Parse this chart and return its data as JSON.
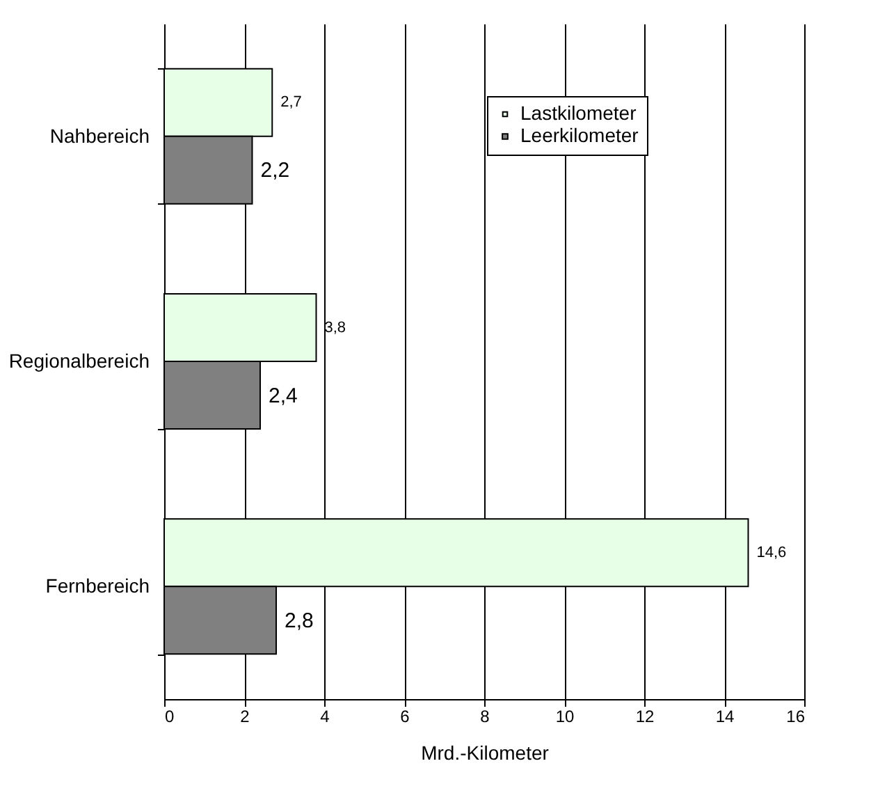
{
  "chart_data": {
    "type": "bar",
    "orientation": "horizontal",
    "xlabel": "Mrd.-Kilometer",
    "categories": [
      "Nahbereich",
      "Regionalbereich",
      "Fernbereich"
    ],
    "series": [
      {
        "name": "Lastkilometer",
        "color": "#e6ffe6",
        "values": [
          2.7,
          3.8,
          14.6
        ],
        "value_labels": [
          "2,7",
          "3,8",
          "14,6"
        ]
      },
      {
        "name": "Leerkilometer",
        "color": "#808080",
        "values": [
          2.2,
          2.4,
          2.8
        ],
        "value_labels": [
          "2,2",
          "2,4",
          "2,8"
        ]
      }
    ],
    "xlim": [
      0,
      16
    ],
    "xticks": [
      0,
      2,
      4,
      6,
      8,
      10,
      12,
      14,
      16
    ],
    "grid": "x",
    "legend": "top right"
  }
}
